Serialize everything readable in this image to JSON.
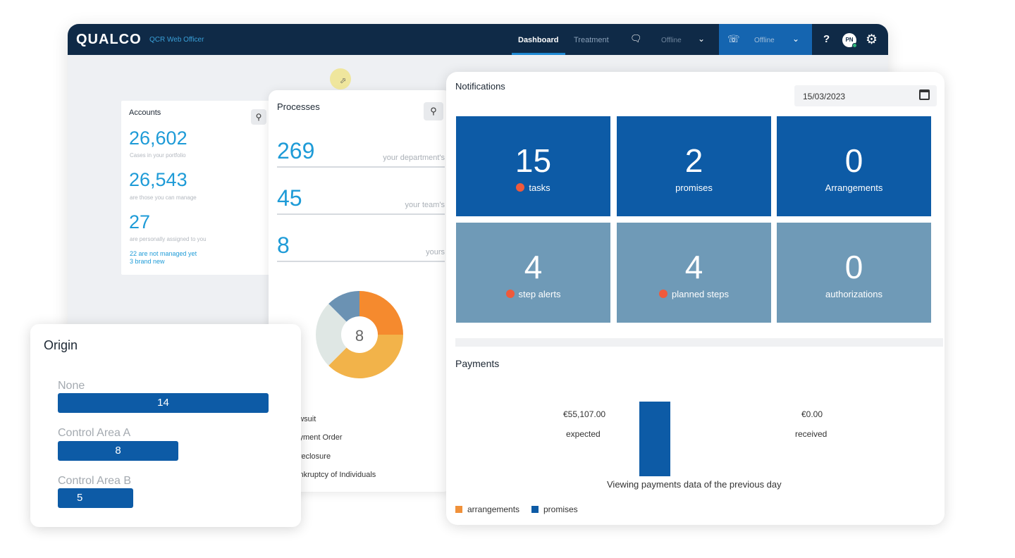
{
  "topbar": {
    "brand": "QUALCO",
    "app_name": "QCR Web Officer",
    "tabs": [
      {
        "label": "Dashboard",
        "active": true
      },
      {
        "label": "Treatment",
        "active": false
      }
    ],
    "chat_status": "Offline",
    "phone_status": "Offline",
    "help_label": "?",
    "avatar_initials": "PN",
    "icons": [
      "chat-icon",
      "chevron-down-icon",
      "headset-icon",
      "help-icon",
      "avatar",
      "gear-icon"
    ]
  },
  "accounts": {
    "title": "Accounts",
    "items": [
      {
        "value": "26,602",
        "caption": "Cases in your portfolio"
      },
      {
        "value": "26,543",
        "caption": "are those you can manage"
      },
      {
        "value": "27",
        "caption": "are personally assigned to you"
      }
    ],
    "links": [
      "22 are not managed yet",
      "3 brand new"
    ]
  },
  "processes": {
    "title": "Processes",
    "items": [
      {
        "value": "269",
        "label": "your department's"
      },
      {
        "value": "45",
        "label": "your team's"
      },
      {
        "value": "8",
        "label": "yours"
      }
    ],
    "donut": {
      "center_value": "8",
      "segments": [
        {
          "value": 2,
          "color": "#f58a2e"
        },
        {
          "value": 3,
          "color": "#f2b34a"
        },
        {
          "value": 2,
          "color": "#dfe7e4"
        },
        {
          "value": 1,
          "color": "#6b92b3"
        }
      ]
    },
    "legend": [
      "Lawsuit",
      "Payment Order",
      "Foreclosure",
      "Bankruptcy of Individuals"
    ]
  },
  "notifications": {
    "title": "Notifications",
    "date": "15/03/2023",
    "tiles": [
      {
        "value": "15",
        "label": "tasks",
        "alert": true,
        "style": "dark"
      },
      {
        "value": "2",
        "label": "promises",
        "alert": false,
        "style": "dark"
      },
      {
        "value": "0",
        "label": "Arrangements",
        "alert": false,
        "style": "dark"
      },
      {
        "value": "4",
        "label": "step alerts",
        "alert": true,
        "style": "light"
      },
      {
        "value": "4",
        "label": "planned steps",
        "alert": true,
        "style": "light"
      },
      {
        "value": "0",
        "label": "authorizations",
        "alert": false,
        "style": "light"
      }
    ]
  },
  "payments": {
    "title": "Payments",
    "expected_amount": "€55,107.00",
    "expected_label": "expected",
    "received_amount": "€0.00",
    "received_label": "received",
    "note": "Viewing payments data of the previous day",
    "legend": [
      {
        "label": "arrangements",
        "color": "#f0913a"
      },
      {
        "label": "promises",
        "color": "#0d5ba6"
      }
    ]
  },
  "origin": {
    "title": "Origin",
    "bars": [
      {
        "label": "None",
        "value": 14
      },
      {
        "label": "Control Area A",
        "value": 8
      },
      {
        "label": "Control Area B",
        "value": 5
      }
    ]
  },
  "colors": {
    "topbar": "#0f2a47",
    "accent_blue": "#1e9bd7",
    "tile_dark": "#0d5ba6",
    "tile_light": "#6f9ab7",
    "alert_dot": "#ef5a3c"
  }
}
